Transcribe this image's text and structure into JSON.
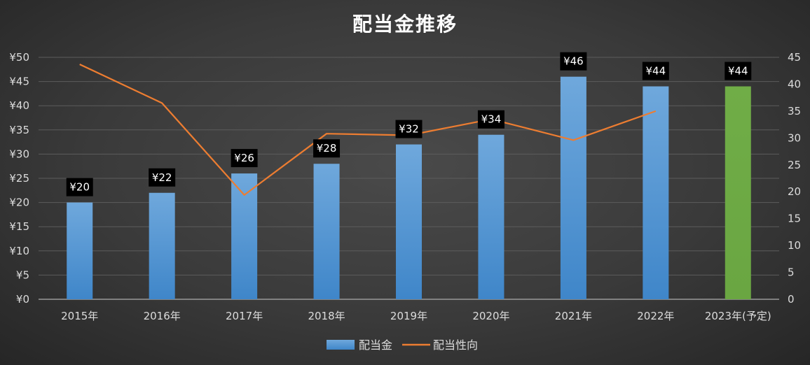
{
  "chart_data": {
    "type": "bar",
    "title": "配当金推移",
    "categories": [
      "2015年",
      "2016年",
      "2017年",
      "2018年",
      "2019年",
      "2020年",
      "2021年",
      "2022年",
      "2023年(予定)"
    ],
    "series": [
      {
        "name": "配当金",
        "kind": "bar",
        "axis": "left",
        "values": [
          20,
          22,
          26,
          28,
          32,
          34,
          46,
          44,
          44
        ],
        "labels": [
          "¥20",
          "¥22",
          "¥26",
          "¥28",
          "¥32",
          "¥34",
          "¥46",
          "¥44",
          "¥44"
        ],
        "color": "#5b9bd5",
        "highlight_color": "#70ad47",
        "highlight_index": 8
      },
      {
        "name": "配当性向",
        "kind": "line",
        "axis": "right",
        "values": [
          43.7,
          36.5,
          19.4,
          30.8,
          30.5,
          33.5,
          29.6,
          35.0,
          null
        ],
        "color": "#ed7d31"
      }
    ],
    "ylim_left": [
      0,
      50
    ],
    "yticks_left": [
      "¥0",
      "¥5",
      "¥10",
      "¥15",
      "¥20",
      "¥25",
      "¥30",
      "¥35",
      "¥40",
      "¥45",
      "¥50"
    ],
    "ylim_right": [
      0,
      45
    ],
    "yticks_right": [
      "0",
      "5",
      "10",
      "15",
      "20",
      "25",
      "30",
      "35",
      "40",
      "45"
    ],
    "grid": true,
    "legend_position": "bottom"
  }
}
